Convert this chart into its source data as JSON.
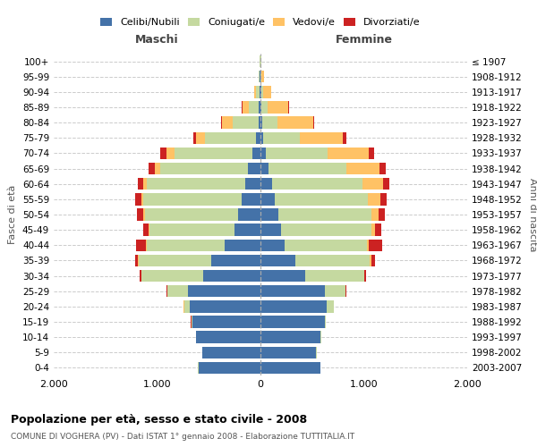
{
  "age_groups": [
    "0-4",
    "5-9",
    "10-14",
    "15-19",
    "20-24",
    "25-29",
    "30-34",
    "35-39",
    "40-44",
    "45-49",
    "50-54",
    "55-59",
    "60-64",
    "65-69",
    "70-74",
    "75-79",
    "80-84",
    "85-89",
    "90-94",
    "95-99",
    "100+"
  ],
  "birth_years": [
    "2003-2007",
    "1998-2002",
    "1993-1997",
    "1988-1992",
    "1983-1987",
    "1978-1982",
    "1973-1977",
    "1968-1972",
    "1963-1967",
    "1958-1962",
    "1953-1957",
    "1948-1952",
    "1943-1947",
    "1938-1942",
    "1933-1937",
    "1928-1932",
    "1923-1927",
    "1918-1922",
    "1913-1917",
    "1908-1912",
    "≤ 1907"
  ],
  "male": {
    "celibi": [
      600,
      560,
      620,
      660,
      680,
      700,
      550,
      480,
      350,
      250,
      220,
      180,
      150,
      120,
      80,
      40,
      20,
      15,
      10,
      5,
      2
    ],
    "coniugati": [
      2,
      2,
      5,
      10,
      60,
      200,
      600,
      700,
      750,
      820,
      900,
      950,
      950,
      850,
      750,
      500,
      250,
      100,
      30,
      10,
      3
    ],
    "vedovi": [
      0,
      0,
      0,
      0,
      1,
      1,
      2,
      3,
      5,
      10,
      15,
      20,
      30,
      50,
      80,
      80,
      100,
      60,
      20,
      5,
      1
    ],
    "divorziati": [
      0,
      0,
      0,
      2,
      3,
      5,
      20,
      30,
      100,
      50,
      60,
      60,
      55,
      60,
      60,
      30,
      8,
      5,
      2,
      0,
      0
    ]
  },
  "female": {
    "nubili": [
      580,
      540,
      580,
      620,
      640,
      620,
      430,
      340,
      230,
      200,
      170,
      140,
      110,
      80,
      50,
      30,
      15,
      10,
      5,
      3,
      2
    ],
    "coniugate": [
      2,
      2,
      5,
      15,
      70,
      200,
      570,
      720,
      800,
      870,
      900,
      900,
      880,
      750,
      600,
      350,
      150,
      60,
      20,
      8,
      3
    ],
    "vedove": [
      0,
      0,
      0,
      0,
      1,
      2,
      5,
      10,
      20,
      40,
      70,
      120,
      200,
      320,
      400,
      420,
      350,
      200,
      80,
      25,
      5
    ],
    "divorziate": [
      0,
      0,
      0,
      1,
      3,
      5,
      15,
      40,
      130,
      55,
      65,
      60,
      55,
      60,
      50,
      30,
      8,
      5,
      2,
      0,
      0
    ]
  },
  "colors": {
    "celibi_nubili": "#4472a8",
    "coniugati": "#c5d9a0",
    "vedovi": "#ffc265",
    "divorziati": "#cc2222"
  },
  "xlim": 2000,
  "title": "Popolazione per età, sesso e stato civile - 2008",
  "subtitle": "COMUNE DI VOGHERA (PV) - Dati ISTAT 1° gennaio 2008 - Elaborazione TUTTITALIA.IT",
  "ylabel_left": "Fasce di età",
  "ylabel_right": "Anni di nascita",
  "xlabel_left": "Maschi",
  "xlabel_right": "Femmine"
}
